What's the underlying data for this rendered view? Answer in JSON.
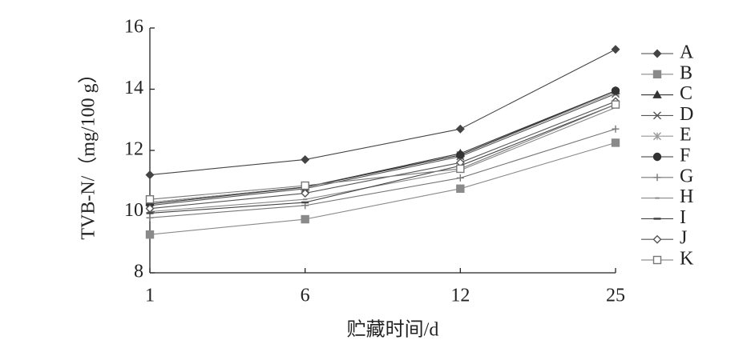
{
  "chart_data": {
    "type": "line",
    "x_label": "贮藏时间/d",
    "y_label": "TVB-N/（mg/100 g）",
    "categories": [
      "1",
      "6",
      "12",
      "25"
    ],
    "ylim": [
      8,
      16
    ],
    "yticks": [
      8,
      10,
      12,
      14,
      16
    ],
    "series": [
      {
        "name": "A",
        "color": "#444",
        "marker": "diamond-filled",
        "values": [
          11.2,
          11.7,
          12.7,
          15.3
        ]
      },
      {
        "name": "B",
        "color": "#8a8a8a",
        "marker": "square-filled",
        "values": [
          9.25,
          9.75,
          10.75,
          12.25
        ]
      },
      {
        "name": "C",
        "color": "#333",
        "marker": "triangle",
        "values": [
          10.3,
          10.8,
          11.9,
          13.95
        ]
      },
      {
        "name": "D",
        "color": "#555",
        "marker": "x",
        "values": [
          10.2,
          10.75,
          11.8,
          13.85
        ]
      },
      {
        "name": "E",
        "color": "#999",
        "marker": "asterisk",
        "values": [
          10.3,
          10.8,
          11.85,
          13.9
        ]
      },
      {
        "name": "F",
        "color": "#333",
        "marker": "circle-filled",
        "values": [
          10.25,
          10.8,
          11.85,
          13.95
        ]
      },
      {
        "name": "G",
        "color": "#777",
        "marker": "plus",
        "values": [
          9.8,
          10.2,
          11.1,
          12.7
        ]
      },
      {
        "name": "H",
        "color": "#888",
        "marker": "dash-small",
        "values": [
          10.0,
          10.4,
          11.35,
          13.4
        ]
      },
      {
        "name": "I",
        "color": "#444",
        "marker": "dash",
        "values": [
          9.95,
          10.3,
          11.5,
          13.5
        ]
      },
      {
        "name": "J",
        "color": "#555",
        "marker": "diamond-open",
        "values": [
          10.1,
          10.6,
          11.6,
          13.6
        ]
      },
      {
        "name": "K",
        "color": "#777",
        "marker": "square-open",
        "values": [
          10.4,
          10.85,
          11.4,
          13.5
        ]
      }
    ]
  }
}
